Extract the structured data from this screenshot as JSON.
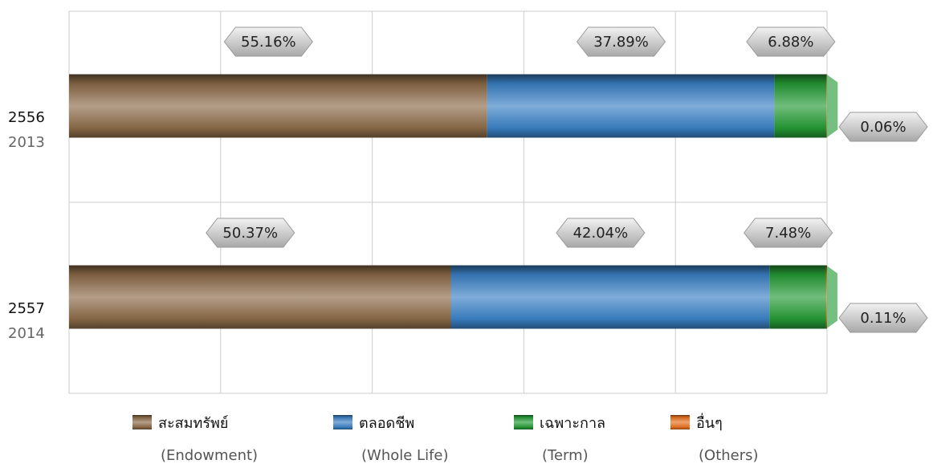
{
  "chart_data": {
    "type": "stacked_bar_horizontal",
    "categories": [
      [
        "2556",
        "2013"
      ],
      [
        "2557",
        "2014"
      ]
    ],
    "series": [
      {
        "name": "สะสมทรัพย์",
        "name_en": "(Endowment)",
        "color": "#8b6a48",
        "values": [
          55.16,
          50.37
        ],
        "value_labels": [
          "55.16%",
          "50.37%"
        ]
      },
      {
        "name": "ตลอดชีพ",
        "name_en": "(Whole Life)",
        "color": "#3a80c4",
        "values": [
          37.89,
          42.04
        ],
        "value_labels": [
          "37.89%",
          "42.04%"
        ]
      },
      {
        "name": "เฉพาะกาล",
        "name_en": "(Term)",
        "color": "#259a35",
        "values": [
          6.88,
          7.48
        ],
        "value_labels": [
          "6.88%",
          "7.48%"
        ]
      },
      {
        "name": "อื่นๆ",
        "name_en": "(Others)",
        "color": "#e8701e",
        "values": [
          0.06,
          0.11
        ],
        "value_labels": [
          "0.06%",
          "0.11%"
        ]
      }
    ],
    "xlim": [
      0,
      100
    ],
    "xticks": [
      0,
      20,
      40,
      60,
      80,
      100
    ],
    "grid": true
  }
}
